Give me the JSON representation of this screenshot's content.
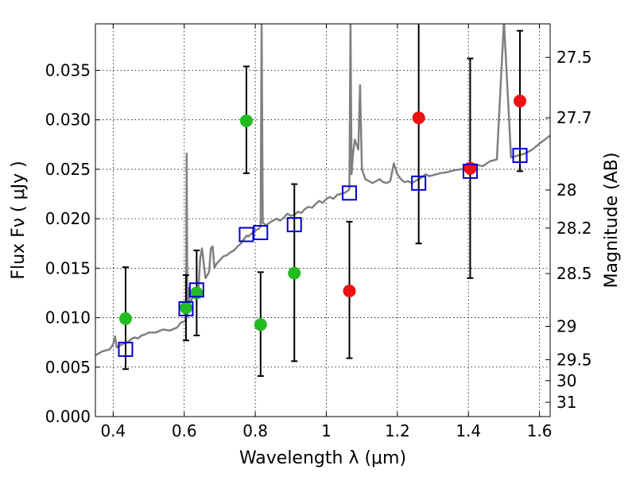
{
  "chart_data": {
    "type": "scatter",
    "xlabel": "Wavelength  λ (μm)",
    "ylabel": "Flux  Fν  ( μJy )",
    "y2label": "Magnitude (AB)",
    "xlim": [
      0.35,
      1.63
    ],
    "ylim": [
      0.0,
      0.0397
    ],
    "xticks": [
      0.4,
      0.6,
      0.8,
      1.0,
      1.2,
      1.4,
      1.6
    ],
    "xtick_labels": [
      "0.4",
      "0.6",
      "0.8",
      "1",
      "1.2",
      "1.4",
      "1.6"
    ],
    "yticks": [
      0.0,
      0.005,
      0.01,
      0.015,
      0.02,
      0.025,
      0.03,
      0.035
    ],
    "ytick_labels": [
      "0.000",
      "0.005",
      "0.010",
      "0.015",
      "0.020",
      "0.025",
      "0.030",
      "0.035"
    ],
    "y2ticks": [
      {
        "label": "27.5",
        "mag": 27.5
      },
      {
        "label": "27.7",
        "mag": 27.7
      },
      {
        "label": "28",
        "mag": 28.0
      },
      {
        "label": "28.2",
        "mag": 28.2
      },
      {
        "label": "28.5",
        "mag": 28.5
      },
      {
        "label": "29",
        "mag": 29.0
      },
      {
        "label": "29.5",
        "mag": 29.5
      },
      {
        "label": "30",
        "mag": 30.0
      },
      {
        "label": "31",
        "mag": 31.0
      }
    ],
    "grid": true,
    "colors": {
      "green": "#22bb22",
      "red": "#ee1111",
      "model_box": "#0000cc",
      "spectrum": "#808080",
      "errorbar": "#000000"
    },
    "series": [
      {
        "marker": "circle-green",
        "points": [
          {
            "x": 0.435,
            "y": 0.0099,
            "lo": 0.0048,
            "hi": 0.0151
          },
          {
            "x": 0.605,
            "y": 0.011,
            "lo": 0.0077,
            "hi": 0.0143
          },
          {
            "x": 0.635,
            "y": 0.0125,
            "lo": 0.0082,
            "hi": 0.0168
          },
          {
            "x": 0.775,
            "y": 0.0299,
            "lo": 0.0246,
            "hi": 0.0354
          },
          {
            "x": 0.815,
            "y": 0.0093,
            "lo": 0.0041,
            "hi": 0.0146
          },
          {
            "x": 0.91,
            "y": 0.0145,
            "lo": 0.0056,
            "hi": 0.0235
          }
        ]
      },
      {
        "marker": "circle-red",
        "points": [
          {
            "x": 1.065,
            "y": 0.0127,
            "lo": 0.0059,
            "hi": 0.0197
          },
          {
            "x": 1.26,
            "y": 0.0302,
            "lo": 0.0175,
            "hi": 0.04
          },
          {
            "x": 1.405,
            "y": 0.0251,
            "lo": 0.014,
            "hi": 0.0362
          },
          {
            "x": 1.545,
            "y": 0.0319,
            "lo": 0.0248,
            "hi": 0.039
          }
        ]
      },
      {
        "marker": "square-blue",
        "points": [
          {
            "x": 0.435,
            "y": 0.0068
          },
          {
            "x": 0.605,
            "y": 0.0109
          },
          {
            "x": 0.635,
            "y": 0.0128
          },
          {
            "x": 0.775,
            "y": 0.0184
          },
          {
            "x": 0.815,
            "y": 0.0186
          },
          {
            "x": 0.91,
            "y": 0.0194
          },
          {
            "x": 1.065,
            "y": 0.0226
          },
          {
            "x": 1.26,
            "y": 0.0236
          },
          {
            "x": 1.405,
            "y": 0.0248
          },
          {
            "x": 1.545,
            "y": 0.0264
          }
        ]
      }
    ],
    "spectrum": {
      "x": [
        0.35,
        0.37,
        0.39,
        0.4,
        0.405,
        0.41,
        0.42,
        0.43,
        0.44,
        0.45,
        0.46,
        0.47,
        0.48,
        0.49,
        0.5,
        0.52,
        0.54,
        0.56,
        0.58,
        0.59,
        0.6,
        0.605,
        0.607,
        0.609,
        0.612,
        0.615,
        0.62,
        0.63,
        0.64,
        0.645,
        0.65,
        0.66,
        0.67,
        0.675,
        0.68,
        0.685,
        0.69,
        0.7,
        0.71,
        0.72,
        0.73,
        0.74,
        0.75,
        0.76,
        0.765,
        0.77,
        0.775,
        0.78,
        0.79,
        0.8,
        0.81,
        0.815,
        0.818,
        0.821,
        0.825,
        0.83,
        0.84,
        0.85,
        0.86,
        0.87,
        0.88,
        0.89,
        0.9,
        0.91,
        0.92,
        0.93,
        0.94,
        0.95,
        0.96,
        0.97,
        0.98,
        0.99,
        1.0,
        1.01,
        1.02,
        1.03,
        1.04,
        1.05,
        1.06,
        1.065,
        1.068,
        1.071,
        1.075,
        1.08,
        1.09,
        1.095,
        1.1,
        1.11,
        1.12,
        1.13,
        1.14,
        1.15,
        1.16,
        1.17,
        1.18,
        1.19,
        1.2,
        1.21,
        1.22,
        1.23,
        1.24,
        1.25,
        1.26,
        1.27,
        1.28,
        1.29,
        1.3,
        1.32,
        1.34,
        1.36,
        1.38,
        1.4,
        1.42,
        1.44,
        1.46,
        1.48,
        1.5,
        1.52,
        1.54,
        1.56,
        1.58,
        1.6,
        1.63
      ],
      "y": [
        0.0062,
        0.0066,
        0.0068,
        0.0073,
        0.0081,
        0.007,
        0.0072,
        0.0074,
        0.0075,
        0.0078,
        0.008,
        0.0079,
        0.0082,
        0.0083,
        0.0085,
        0.0085,
        0.0088,
        0.0087,
        0.009,
        0.0095,
        0.0096,
        0.0099,
        0.0266,
        0.0101,
        0.013,
        0.0115,
        0.0118,
        0.0125,
        0.0128,
        0.016,
        0.017,
        0.014,
        0.0146,
        0.017,
        0.0172,
        0.015,
        0.0154,
        0.0158,
        0.0162,
        0.0163,
        0.0166,
        0.0168,
        0.0172,
        0.0175,
        0.0178,
        0.018,
        0.0183,
        0.0182,
        0.0185,
        0.0188,
        0.019,
        0.0192,
        0.04,
        0.0196,
        0.0195,
        0.0193,
        0.0196,
        0.0198,
        0.02,
        0.0198,
        0.0201,
        0.0205,
        0.0203,
        0.0204,
        0.0207,
        0.0206,
        0.021,
        0.0212,
        0.0211,
        0.0215,
        0.0218,
        0.0216,
        0.022,
        0.0222,
        0.022,
        0.0224,
        0.0225,
        0.0226,
        0.0228,
        0.023,
        0.04,
        0.0245,
        0.0265,
        0.028,
        0.027,
        0.0335,
        0.025,
        0.024,
        0.0238,
        0.0236,
        0.0238,
        0.024,
        0.0237,
        0.0236,
        0.0238,
        0.0256,
        0.0245,
        0.024,
        0.0237,
        0.0238,
        0.0236,
        0.0238,
        0.024,
        0.0242,
        0.0245,
        0.0243,
        0.0244,
        0.0246,
        0.0247,
        0.0249,
        0.025,
        0.0252,
        0.0255,
        0.0253,
        0.0258,
        0.026,
        0.04,
        0.0262,
        0.0264,
        0.0266,
        0.027,
        0.0276,
        0.0284
      ]
    }
  }
}
